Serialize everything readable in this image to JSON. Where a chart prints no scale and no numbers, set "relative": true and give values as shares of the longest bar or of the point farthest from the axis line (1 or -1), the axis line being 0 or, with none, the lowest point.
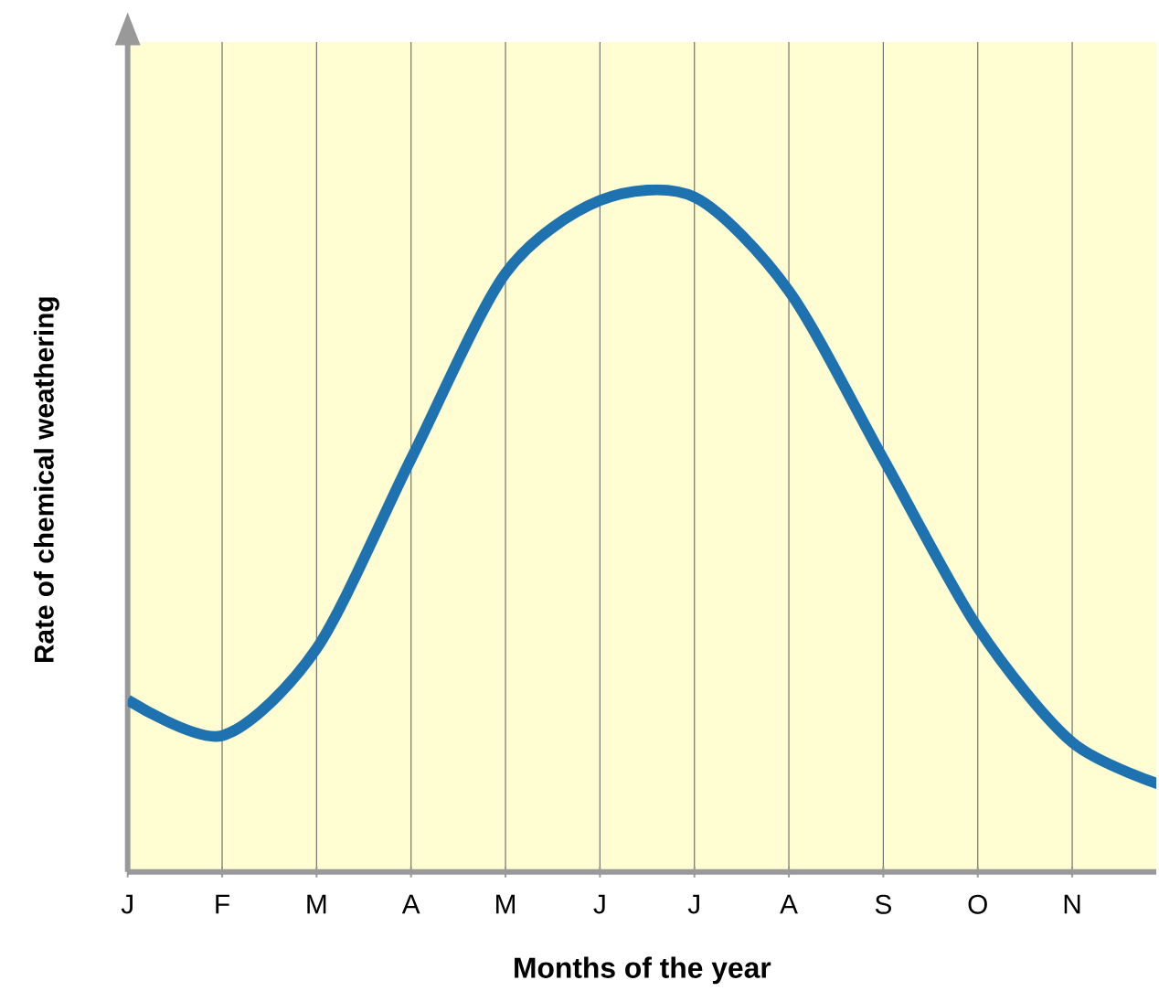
{
  "chart_data": {
    "type": "line",
    "relative": true,
    "xlabel": "Months of the year",
    "ylabel": "Rate of chemical weathering",
    "categories": [
      "J",
      "F",
      "M",
      "A",
      "M",
      "J",
      "J",
      "A",
      "S",
      "O",
      "N",
      null
    ],
    "series": [
      {
        "color": "#1f72b0",
        "values": [
          0.255,
          0.202,
          0.331,
          0.612,
          0.887,
          0.995,
          1.0,
          0.861,
          0.612,
          0.362,
          0.192,
          0.126
        ]
      }
    ],
    "grid": "x",
    "marker": "none",
    "line_style": "solid"
  }
}
